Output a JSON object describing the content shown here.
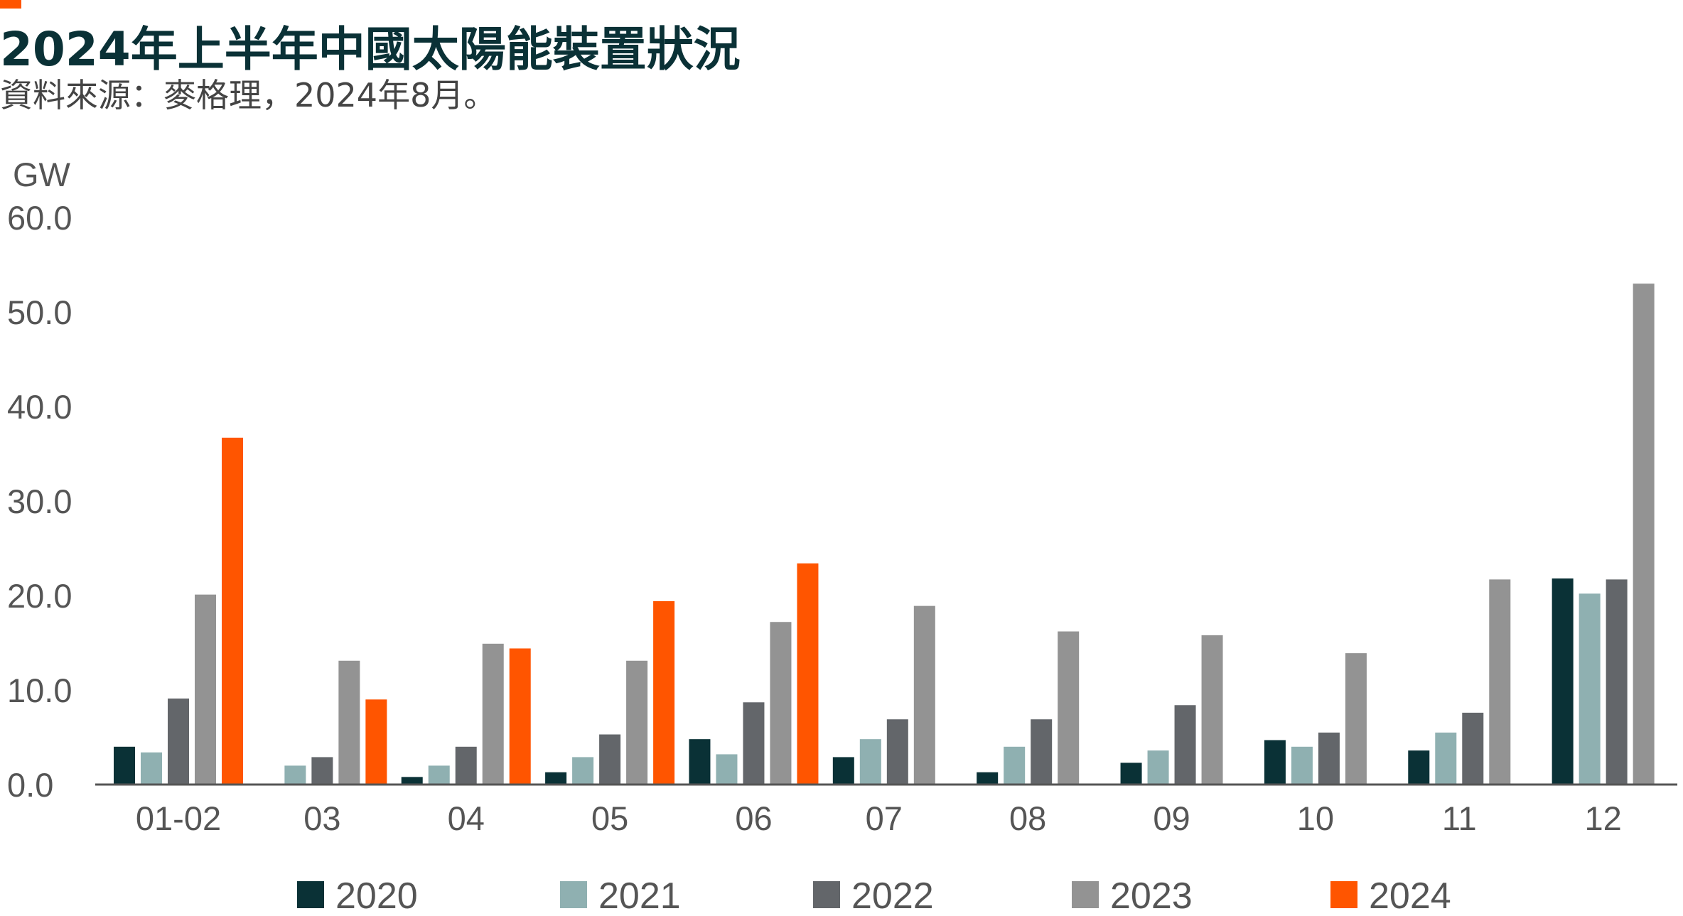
{
  "title": "2024年上半年中國太陽能裝置狀況",
  "subtitle": "資料來源：麥格理，2024年8月。",
  "colors": {
    "accent": "#ff5500",
    "title": "#0a3136",
    "axis": "#555555"
  },
  "chart_data": {
    "type": "bar",
    "ylabel": "GW",
    "ylim": [
      0,
      60
    ],
    "yticks": [
      "60.0",
      "50.0",
      "40.0",
      "30.0",
      "20.0",
      "10.0",
      "0.0"
    ],
    "ytick_values": [
      60,
      50,
      40,
      30,
      20,
      10,
      0
    ],
    "grid": false,
    "legend_position": "bottom",
    "categories": [
      "01-02",
      "03",
      "04",
      "05",
      "06",
      "07",
      "08",
      "09",
      "10",
      "11",
      "12"
    ],
    "series": [
      {
        "name": "2020",
        "color": "#0a3136",
        "values": [
          4.0,
          0.0,
          0.8,
          1.3,
          4.8,
          2.9,
          1.3,
          2.3,
          4.7,
          3.6,
          21.8
        ]
      },
      {
        "name": "2021",
        "color": "#8fb0b1",
        "values": [
          3.4,
          2.0,
          2.0,
          2.9,
          3.2,
          4.8,
          4.0,
          3.6,
          4.0,
          5.5,
          20.2
        ]
      },
      {
        "name": "2022",
        "color": "#63666a",
        "values": [
          9.1,
          2.9,
          4.0,
          5.3,
          8.7,
          6.9,
          6.9,
          8.4,
          5.5,
          7.6,
          21.7
        ]
      },
      {
        "name": "2023",
        "color": "#939393",
        "values": [
          20.1,
          13.1,
          14.9,
          13.1,
          17.2,
          18.9,
          16.2,
          15.8,
          13.9,
          21.7,
          53.0
        ]
      },
      {
        "name": "2024",
        "color": "#ff5500",
        "values": [
          36.7,
          9.0,
          14.4,
          19.4,
          23.4,
          null,
          null,
          null,
          null,
          null,
          null
        ]
      }
    ]
  }
}
